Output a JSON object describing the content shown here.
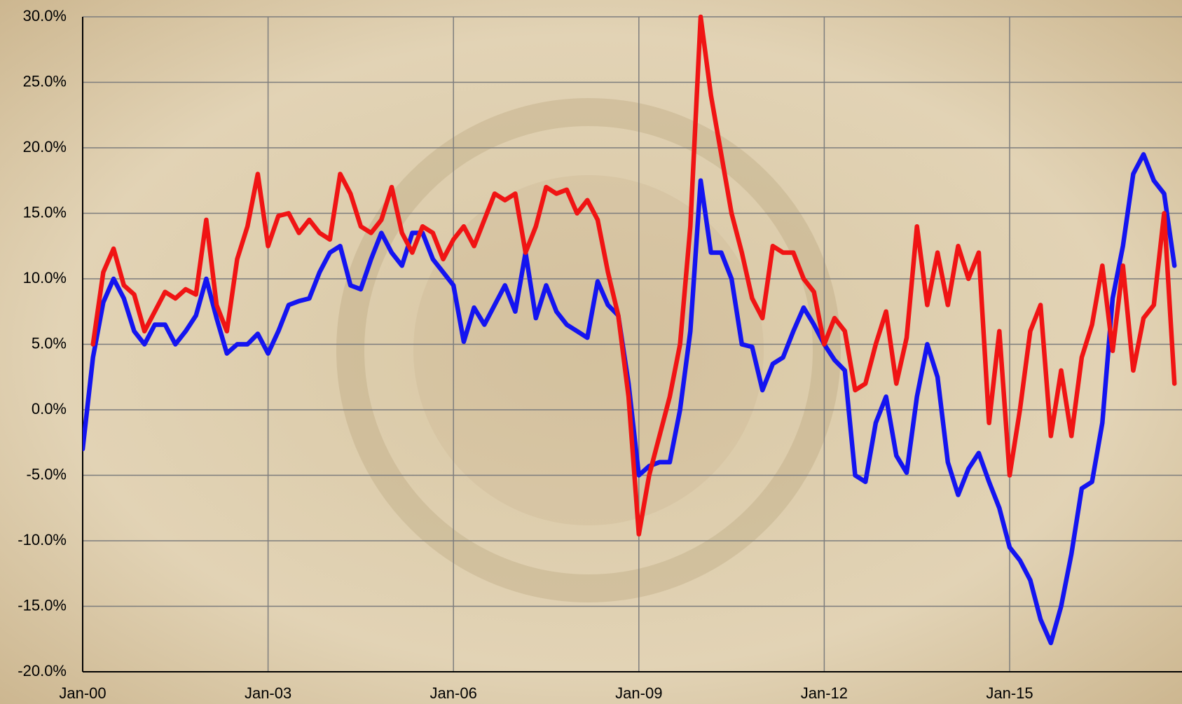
{
  "chart_data": {
    "type": "line",
    "categories": [
      "Jan-00",
      null,
      null,
      null,
      null,
      null,
      null,
      null,
      null,
      null,
      null,
      null,
      null,
      null,
      null,
      null,
      null,
      null,
      "Jan-03",
      null,
      null,
      null,
      null,
      null,
      null,
      null,
      null,
      null,
      null,
      null,
      null,
      null,
      null,
      null,
      null,
      null,
      "Jan-06",
      null,
      null,
      null,
      null,
      null,
      null,
      null,
      null,
      null,
      null,
      null,
      null,
      null,
      null,
      null,
      null,
      null,
      "Jan-09",
      null,
      null,
      null,
      null,
      null,
      null,
      null,
      null,
      null,
      null,
      null,
      null,
      null,
      null,
      null,
      null,
      null,
      "Jan-12",
      null,
      null,
      null,
      null,
      null,
      null,
      null,
      null,
      null,
      null,
      null,
      null,
      null,
      null,
      null,
      null,
      null,
      "Jan-15",
      null,
      null,
      null,
      null,
      null,
      null,
      null,
      null,
      null,
      null,
      null,
      null,
      null,
      null,
      null,
      null
    ],
    "series": [
      {
        "color": "#1414f0",
        "values": [
          -3,
          4,
          8.2,
          10,
          8.5,
          6,
          5,
          6.5,
          6.5,
          5,
          6,
          7.2,
          10,
          7,
          4.3,
          5,
          5,
          5.8,
          4.3,
          6,
          8,
          8.3,
          8.5,
          10.5,
          12,
          12.5,
          9.5,
          9.2,
          11.5,
          13.5,
          12,
          11,
          13.5,
          13.5,
          11.5,
          10.5,
          9.5,
          5.2,
          7.8,
          6.5,
          8,
          9.5,
          7.5,
          12,
          7,
          9.5,
          7.5,
          6.5,
          6,
          5.5,
          9.8,
          8,
          7.2,
          2,
          -5,
          -4.3,
          -4,
          -4,
          0,
          6,
          17.5,
          12,
          12,
          10,
          5,
          4.8,
          1.5,
          3.5,
          4,
          6,
          7.8,
          6.5,
          5,
          3.8,
          3,
          -5,
          -5.5,
          -1,
          1,
          -3.5,
          -4.8,
          1,
          5,
          2.5,
          -4,
          -6.5,
          -4.5,
          -3.3,
          -5.5,
          -7.5,
          -10.5,
          -11.5,
          -13,
          -16,
          -17.8,
          -15,
          -11,
          -6,
          -5.5,
          -1,
          8.5,
          12.5,
          18,
          19.5,
          17.5,
          16.5,
          11
        ]
      },
      {
        "color": "#f01414",
        "values": [
          null,
          5,
          10.5,
          12.3,
          9.5,
          8.8,
          6,
          7.5,
          9,
          8.5,
          9.2,
          8.8,
          14.5,
          8,
          6,
          11.5,
          14,
          18,
          12.5,
          14.8,
          15,
          13.5,
          14.5,
          13.5,
          13,
          18,
          16.5,
          14,
          13.5,
          14.5,
          17,
          13.5,
          12,
          14,
          13.5,
          11.5,
          13,
          14,
          12.5,
          14.5,
          16.5,
          16,
          16.5,
          12,
          14,
          17,
          16.5,
          16.8,
          15,
          16,
          14.5,
          10.5,
          7.2,
          1,
          -9.5,
          -5,
          -2,
          1,
          5,
          14,
          30,
          24,
          19.5,
          15,
          12,
          8.5,
          7,
          12.5,
          12,
          12,
          10,
          9,
          5,
          7,
          6,
          1.5,
          2,
          5,
          7.5,
          2,
          5.5,
          14,
          8,
          12,
          8,
          12.5,
          10,
          12,
          -1,
          6,
          -5,
          0,
          6,
          8,
          -2,
          3,
          -2,
          4,
          6.5,
          11,
          4.5,
          11,
          3,
          7,
          8,
          15,
          2
        ]
      }
    ],
    "ylim": [
      -20,
      30
    ],
    "yticks": [
      {
        "value": -20,
        "label": "-20.0%"
      },
      {
        "value": -15,
        "label": "-15.0%"
      },
      {
        "value": -10,
        "label": "-10.0%"
      },
      {
        "value": -5,
        "label": "-5.0%"
      },
      {
        "value": 0,
        "label": "0.0%"
      },
      {
        "value": 5,
        "label": "5.0%"
      },
      {
        "value": 10,
        "label": "10.0%"
      },
      {
        "value": 15,
        "label": "15.0%"
      },
      {
        "value": 20,
        "label": "20.0%"
      },
      {
        "value": 25,
        "label": "25.0%"
      },
      {
        "value": 30,
        "label": "30.0%"
      }
    ],
    "grid": true
  }
}
